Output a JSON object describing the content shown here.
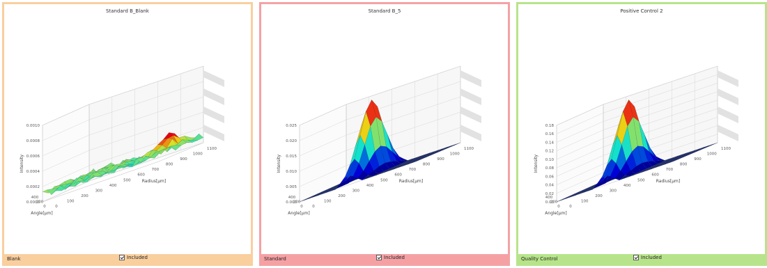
{
  "panels": [
    {
      "title": "Standard B_Blank",
      "type_label": "Blank",
      "included_label": "Included",
      "included": true,
      "color": "#f9cf9e",
      "z_axis_label": "Intensity",
      "z_ticks": [
        "0.0000",
        "0.0002",
        "0.0004",
        "0.0006",
        "0.0008",
        "0.0010"
      ],
      "x_axis_label": "Angle[μm]",
      "x_ticks": [
        "400",
        "200",
        "0"
      ],
      "y_axis_label": "Radius[μm]",
      "y_ticks": [
        "0",
        "100",
        "200",
        "300",
        "400",
        "500",
        "600",
        "700",
        "800",
        "900",
        "1000",
        "1100"
      ],
      "surface": "noise"
    },
    {
      "title": "Standard B_5",
      "type_label": "Standard",
      "included_label": "Included",
      "included": true,
      "color": "#f5a1a4",
      "z_axis_label": "Intensity",
      "z_ticks": [
        "0.000",
        "0.005",
        "0.010",
        "0.015",
        "0.020",
        "0.025"
      ],
      "x_axis_label": "Angle[μm]",
      "x_ticks": [
        "400",
        "200",
        "0"
      ],
      "y_axis_label": "Radius[μm]",
      "y_ticks": [
        "0",
        "100",
        "200",
        "300",
        "400",
        "500",
        "600",
        "700",
        "800",
        "900",
        "1000",
        "1100"
      ],
      "surface": "peak"
    },
    {
      "title": "Positive Control 2",
      "type_label": "Quality Control",
      "included_label": "Included",
      "included": true,
      "color": "#b7e48a",
      "z_axis_label": "Intensity",
      "z_ticks": [
        "0.00",
        "0.02",
        "0.04",
        "0.06",
        "0.08",
        "0.10",
        "0.12",
        "0.14",
        "0.16",
        "0.18"
      ],
      "x_axis_label": "Angle[μm]",
      "x_ticks": [
        "400",
        "200",
        "0"
      ],
      "y_axis_label": "Radius[μm]",
      "y_ticks": [
        "0",
        "100",
        "200",
        "300",
        "400",
        "500",
        "600",
        "700",
        "800",
        "900",
        "1000",
        "1100"
      ],
      "surface": "peak"
    }
  ]
}
